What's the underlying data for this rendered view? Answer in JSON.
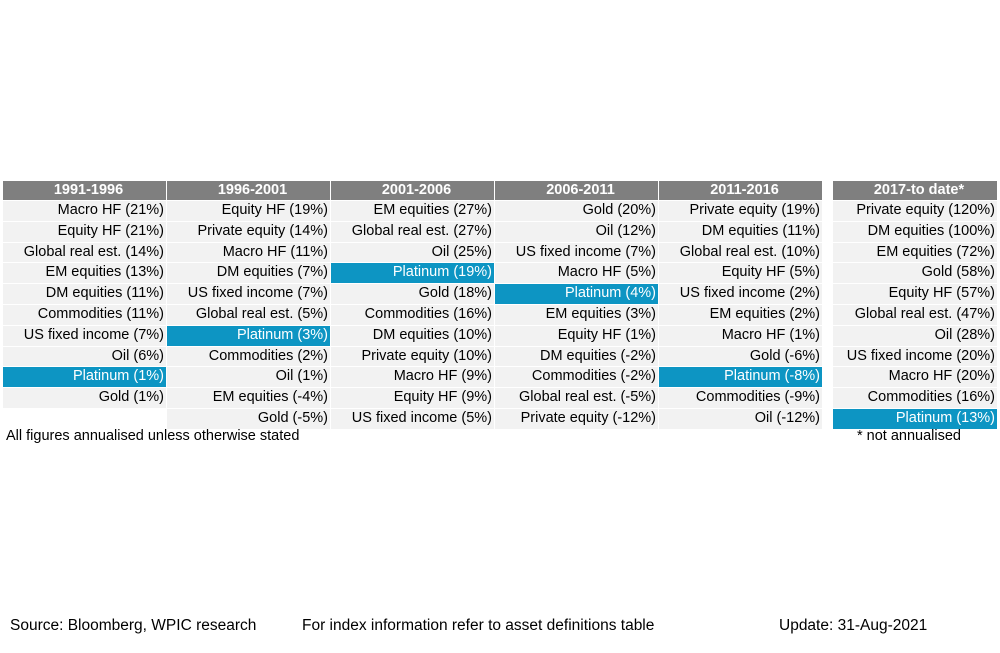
{
  "table": {
    "columns": [
      {
        "header": "1991-1996",
        "cells": [
          "Macro HF (21%)",
          "Equity HF (21%)",
          "Global real est. (14%)",
          "EM equities (13%)",
          "DM equities (11%)",
          "Commodities (11%)",
          "US fixed income (7%)",
          "Oil (6%)",
          "Platinum (1%)",
          "Gold (1%)",
          ""
        ]
      },
      {
        "header": "1996-2001",
        "cells": [
          "Equity HF (19%)",
          "Private equity (14%)",
          "Macro HF (11%)",
          "DM equities (7%)",
          "US fixed income (7%)",
          "Global real est. (5%)",
          "Platinum (3%)",
          "Commodities (2%)",
          "Oil (1%)",
          "EM equities (-4%)",
          "Gold (-5%)"
        ]
      },
      {
        "header": "2001-2006",
        "cells": [
          "EM equities (27%)",
          "Global real est. (27%)",
          "Oil (25%)",
          "Platinum (19%)",
          "Gold (18%)",
          "Commodities (16%)",
          "DM equities (10%)",
          "Private equity (10%)",
          "Macro HF (9%)",
          "Equity HF (9%)",
          "US fixed income (5%)"
        ]
      },
      {
        "header": "2006-2011",
        "cells": [
          "Gold (20%)",
          "Oil (12%)",
          "US fixed income (7%)",
          "Macro HF (5%)",
          "Platinum (4%)",
          "EM equities (3%)",
          "Equity HF (1%)",
          "DM equities (-2%)",
          "Commodities (-2%)",
          "Global real est. (-5%)",
          "Private equity (-12%)"
        ]
      },
      {
        "header": "2011-2016",
        "cells": [
          "Private equity (19%)",
          "DM equities (11%)",
          "Global real est. (10%)",
          "Equity HF (5%)",
          "US fixed income (2%)",
          "EM equities (2%)",
          "Macro HF (1%)",
          "Gold (-6%)",
          "Platinum (-8%)",
          "Commodities (-9%)",
          "Oil (-12%)"
        ]
      },
      {
        "header": "2017-to date*",
        "cells": [
          "Private equity (120%)",
          "DM equities (100%)",
          "EM equities (72%)",
          "Gold (58%)",
          "Equity HF (57%)",
          "Global real est. (47%)",
          "Oil (28%)",
          "US fixed income (20%)",
          "Macro HF (20%)",
          "Commodities (16%)",
          "Platinum (13%)"
        ]
      }
    ],
    "highlight_label": "Platinum",
    "highlight_color": "#0d95c3"
  },
  "notes": {
    "annualised": "All figures annualised unless otherwise stated",
    "not_annualised": "* not annualised"
  },
  "footer": {
    "source": "Source: Bloomberg, WPIC research",
    "index_info": "For index information refer to asset definitions table",
    "update": "Update: 31-Aug-2021"
  }
}
